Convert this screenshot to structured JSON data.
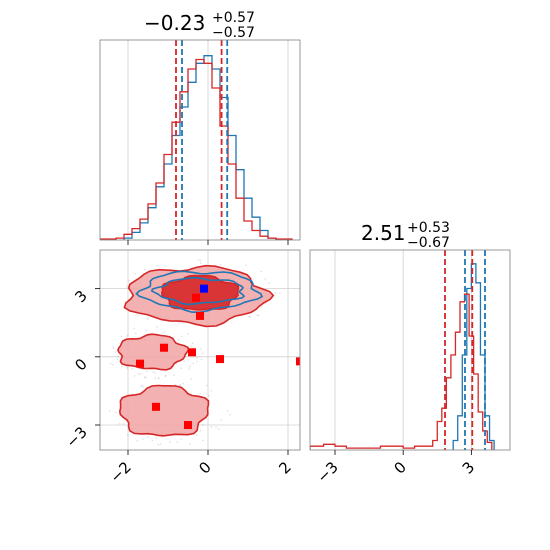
{
  "chart_data": [
    {
      "type": "histogram",
      "panel": "top-left",
      "title": {
        "median": "−0.23",
        "plus": "+0.57",
        "minus": "−0.57"
      },
      "xlim": [
        -2.7,
        2.3
      ],
      "grid": true,
      "series": [
        {
          "color": "#1f77b4",
          "bin_edges": [
            -2.1,
            -1.9,
            -1.7,
            -1.5,
            -1.3,
            -1.1,
            -0.9,
            -0.7,
            -0.5,
            -0.3,
            -0.1,
            0.1,
            0.3,
            0.5,
            0.7,
            0.9,
            1.1,
            1.3,
            1.5,
            1.7
          ],
          "heights": [
            0.01,
            0.04,
            0.09,
            0.17,
            0.28,
            0.4,
            0.55,
            0.7,
            0.83,
            0.93,
            0.97,
            0.9,
            0.75,
            0.55,
            0.37,
            0.22,
            0.12,
            0.05,
            0.01
          ]
        },
        {
          "color": "#d62728",
          "bin_edges": [
            -2.7,
            -2.5,
            -2.3,
            -2.1,
            -1.9,
            -1.7,
            -1.5,
            -1.3,
            -1.1,
            -0.9,
            -0.7,
            -0.5,
            -0.3,
            -0.1,
            0.1,
            0.3,
            0.5,
            0.7,
            0.9,
            1.1,
            1.3,
            1.5,
            1.7,
            1.9,
            2.1
          ],
          "heights": [
            0.005,
            0.005,
            0.01,
            0.03,
            0.06,
            0.11,
            0.19,
            0.3,
            0.45,
            0.62,
            0.78,
            0.9,
            0.95,
            0.93,
            0.8,
            0.6,
            0.4,
            0.22,
            0.1,
            0.05,
            0.02,
            0.01,
            0.005,
            0.005
          ]
        }
      ],
      "quantile_lines": [
        {
          "color": "#1f77b4",
          "x": [
            -0.65,
            0.48
          ]
        },
        {
          "color": "#d62728",
          "x": [
            -0.8,
            0.34
          ]
        }
      ]
    },
    {
      "type": "contour",
      "panel": "bottom-left",
      "xlim": [
        -2.7,
        2.3
      ],
      "ylim": [
        -4.1,
        4.7
      ],
      "x_ticks": [
        "−2",
        "0",
        "2"
      ],
      "x_tick_values": [
        -2,
        0,
        2
      ],
      "y_ticks": [
        "3",
        "0",
        "−3"
      ],
      "y_tick_values": [
        3,
        0,
        -3
      ],
      "grid": true,
      "blue_contours": [
        {
          "cx": -0.2,
          "cy": 2.9,
          "rx": 1.1,
          "ry": 0.55
        },
        {
          "cx": -0.2,
          "cy": 2.9,
          "rx": 1.45,
          "ry": 0.85
        }
      ],
      "red_regions": [
        {
          "level": "inner",
          "cx": -0.2,
          "cy": 2.8,
          "rx": 0.95,
          "ry": 0.75
        },
        {
          "level": "outer",
          "cx": -0.3,
          "cy": 2.7,
          "rx": 1.75,
          "ry": 1.25
        },
        {
          "level": "outer",
          "cx": -1.4,
          "cy": 0.2,
          "rx": 0.85,
          "ry": 0.75
        },
        {
          "level": "outer",
          "cx": -1.1,
          "cy": -2.4,
          "rx": 1.1,
          "ry": 1.1
        }
      ],
      "red_markers": [
        {
          "x": -0.2,
          "y": 1.8
        },
        {
          "x": -0.3,
          "y": 2.6
        },
        {
          "x": -0.4,
          "y": 0.2
        },
        {
          "x": -1.1,
          "y": 0.4
        },
        {
          "x": -1.7,
          "y": -0.3
        },
        {
          "x": 0.3,
          "y": -0.1
        },
        {
          "x": 2.3,
          "y": -0.2
        },
        {
          "x": -1.3,
          "y": -2.2
        },
        {
          "x": -0.5,
          "y": -3.0
        }
      ],
      "blue_marker": {
        "x": -0.1,
        "y": 3.0
      }
    },
    {
      "type": "histogram",
      "panel": "bottom-right",
      "title": {
        "median": "2.51",
        "plus": "+0.53",
        "minus": "−0.67"
      },
      "xlim": [
        -4.1,
        4.7
      ],
      "x_ticks": [
        "−3",
        "0",
        "3"
      ],
      "x_tick_values": [
        -3,
        0,
        3
      ],
      "grid": true,
      "series": [
        {
          "color": "#1f77b4",
          "bin_edges": [
            2.2,
            2.4,
            2.6,
            2.8,
            3.0,
            3.2,
            3.4,
            3.6,
            3.8,
            4.0
          ],
          "heights": [
            0.05,
            0.18,
            0.5,
            0.85,
            0.98,
            0.88,
            0.5,
            0.18,
            0.05
          ]
        },
        {
          "color": "#d62728",
          "bin_edges": [
            -4.1,
            -3.5,
            -3.0,
            -2.5,
            -2.0,
            -1.5,
            -1.0,
            -0.5,
            0.0,
            0.5,
            1.0,
            1.3,
            1.5,
            1.7,
            1.9,
            2.1,
            2.3,
            2.5,
            2.7,
            2.9,
            3.1,
            3.3,
            3.5,
            3.7,
            3.9
          ],
          "heights": [
            0.02,
            0.03,
            0.02,
            0.01,
            0.01,
            0.01,
            0.02,
            0.02,
            0.01,
            0.02,
            0.02,
            0.05,
            0.15,
            0.22,
            0.38,
            0.5,
            0.62,
            0.78,
            0.82,
            0.6,
            0.4,
            0.2,
            0.1,
            0.04
          ]
        }
      ],
      "quantile_lines": [
        {
          "color": "#1f77b4",
          "x": [
            2.72,
            3.6
          ]
        },
        {
          "color": "#d62728",
          "x": [
            1.84,
            3.04
          ]
        }
      ]
    }
  ]
}
